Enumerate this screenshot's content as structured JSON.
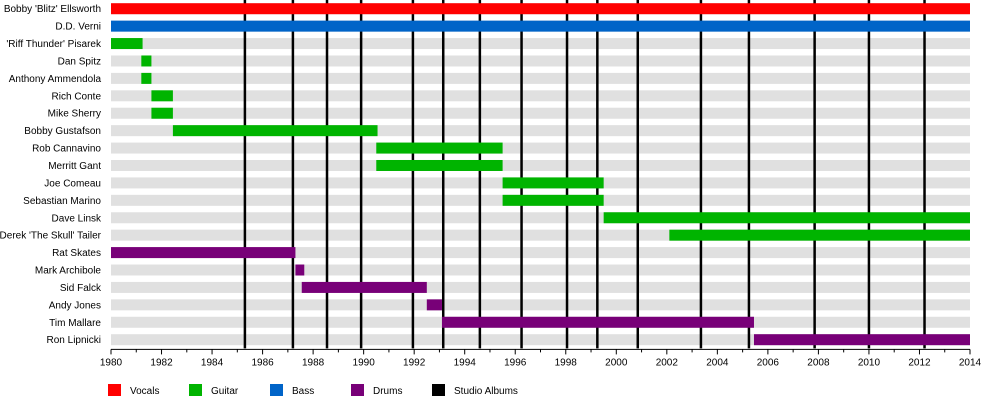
{
  "chart_data": {
    "type": "timeline",
    "title": "",
    "xlim": [
      1980,
      2014
    ],
    "x_ticks": [
      "1980",
      "1982",
      "1984",
      "1986",
      "1988",
      "1990",
      "1992",
      "1994",
      "1996",
      "1998",
      "2000",
      "2002",
      "2004",
      "2006",
      "2008",
      "2010",
      "2012",
      "2014"
    ],
    "members": [
      {
        "name": "Bobby 'Blitz' Ellsworth",
        "bars": [
          {
            "start": 1980.0,
            "end": 2014.0,
            "role": "Vocals"
          }
        ]
      },
      {
        "name": "D.D. Verni",
        "bars": [
          {
            "start": 1980.0,
            "end": 2014.0,
            "role": "Bass"
          }
        ]
      },
      {
        "name": "'Riff Thunder' Pisarek",
        "bars": [
          {
            "start": 1980.0,
            "end": 1981.25,
            "role": "Guitar"
          }
        ]
      },
      {
        "name": "Dan Spitz",
        "bars": [
          {
            "start": 1981.2,
            "end": 1981.6,
            "role": "Guitar"
          }
        ]
      },
      {
        "name": "Anthony Ammendola",
        "bars": [
          {
            "start": 1981.2,
            "end": 1981.6,
            "role": "Guitar"
          }
        ]
      },
      {
        "name": "Rich Conte",
        "bars": [
          {
            "start": 1981.6,
            "end": 1982.45,
            "role": "Guitar"
          }
        ]
      },
      {
        "name": "Mike Sherry",
        "bars": [
          {
            "start": 1981.6,
            "end": 1982.45,
            "role": "Guitar"
          }
        ]
      },
      {
        "name": "Bobby Gustafson",
        "bars": [
          {
            "start": 1982.45,
            "end": 1990.55,
            "role": "Guitar"
          }
        ]
      },
      {
        "name": "Rob Cannavino",
        "bars": [
          {
            "start": 1990.5,
            "end": 1995.5,
            "role": "Guitar"
          }
        ]
      },
      {
        "name": "Merritt Gant",
        "bars": [
          {
            "start": 1990.5,
            "end": 1995.5,
            "role": "Guitar"
          }
        ]
      },
      {
        "name": "Joe Comeau",
        "bars": [
          {
            "start": 1995.5,
            "end": 1999.5,
            "role": "Guitar"
          }
        ]
      },
      {
        "name": "Sebastian Marino",
        "bars": [
          {
            "start": 1995.5,
            "end": 1999.5,
            "role": "Guitar"
          }
        ]
      },
      {
        "name": "Dave Linsk",
        "bars": [
          {
            "start": 1999.5,
            "end": 2014.0,
            "role": "Guitar"
          }
        ]
      },
      {
        "name": "Derek 'The Skull' Tailer",
        "bars": [
          {
            "start": 2002.1,
            "end": 2014.0,
            "role": "Guitar"
          }
        ]
      },
      {
        "name": "Rat Skates",
        "bars": [
          {
            "start": 1980.0,
            "end": 1987.3,
            "role": "Drums"
          }
        ]
      },
      {
        "name": "Mark Archibole",
        "bars": [
          {
            "start": 1987.3,
            "end": 1987.65,
            "role": "Drums"
          }
        ]
      },
      {
        "name": "Sid Falck",
        "bars": [
          {
            "start": 1987.55,
            "end": 1992.5,
            "role": "Drums"
          }
        ]
      },
      {
        "name": "Andy Jones",
        "bars": [
          {
            "start": 1992.5,
            "end": 1993.1,
            "role": "Drums"
          }
        ]
      },
      {
        "name": "Tim Mallare",
        "bars": [
          {
            "start": 1993.1,
            "end": 2005.45,
            "role": "Drums"
          }
        ]
      },
      {
        "name": "Ron Lipnicki",
        "bars": [
          {
            "start": 2005.45,
            "end": 2014.0,
            "role": "Drums"
          }
        ]
      }
    ],
    "studio_albums": [
      1985.3,
      1987.2,
      1988.55,
      1989.9,
      1991.95,
      1993.15,
      1994.6,
      1996.25,
      1998.05,
      1999.25,
      2000.85,
      2003.35,
      2005.25,
      2007.85,
      2010.0,
      2012.2
    ],
    "legend": {
      "position": "bottom",
      "items": [
        {
          "label": "Vocals",
          "key": "Vocals"
        },
        {
          "label": "Guitar",
          "key": "Guitar"
        },
        {
          "label": "Bass",
          "key": "Bass"
        },
        {
          "label": "Drums",
          "key": "Drums"
        },
        {
          "label": "Studio Albums",
          "key": "Studio Albums"
        }
      ]
    },
    "colors": {
      "Vocals": "#ff0000",
      "Guitar": "#00b400",
      "Bass": "#0064c8",
      "Drums": "#780078",
      "Studio Albums": "#000000",
      "row_band": "#e0e0e0"
    }
  }
}
